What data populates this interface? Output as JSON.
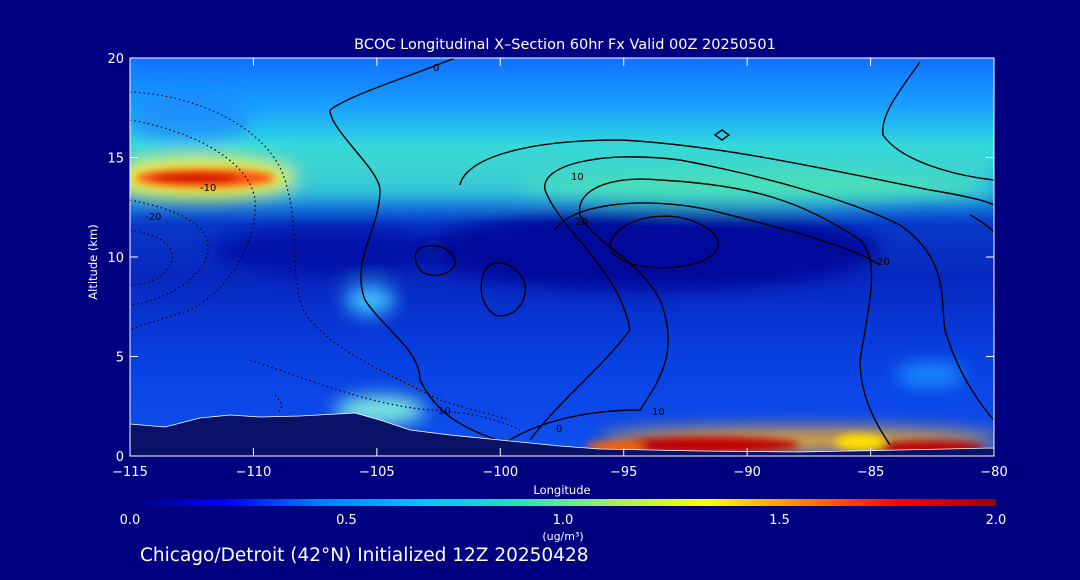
{
  "chart_data": {
    "type": "heatmap",
    "title": "BCOC Longitudinal X–Section 60hr  Fx Valid 00Z 20250501",
    "xlabel": "Longitude",
    "ylabel": "Altitude (km)",
    "xlim": [
      -115,
      -80
    ],
    "ylim": [
      0,
      20
    ],
    "xticks": [
      -115,
      -110,
      -105,
      -100,
      -95,
      -90,
      -85,
      -80
    ],
    "xtick_labels": [
      "−115",
      "−110",
      "−105",
      "−100",
      "−95",
      "−90",
      "−85",
      "−80"
    ],
    "yticks": [
      0,
      5,
      10,
      15,
      20
    ],
    "ytick_labels": [
      "0",
      "5",
      "10",
      "15",
      "20"
    ],
    "colorbar": {
      "min": 0.0,
      "max": 2.0,
      "ticks": [
        0.0,
        0.5,
        1.0,
        1.5,
        2.0
      ],
      "tick_labels": [
        "0.0",
        "0.5",
        "1.0",
        "1.5",
        "2.0"
      ],
      "unit_label": "(ug/m³)",
      "colormap": [
        "#000080",
        "#0000ff",
        "#0080ff",
        "#00c0ff",
        "#20e0c0",
        "#a0f060",
        "#ffff00",
        "#ff8000",
        "#ff0000",
        "#a00000"
      ]
    },
    "contour_labels": [
      "0",
      "10",
      "20",
      "-10",
      "-20",
      "10",
      "20",
      "0",
      "10"
    ],
    "grid": false
  },
  "footer": {
    "caption": "Chicago/Detroit (42°N) Initialized 12Z 20250428"
  }
}
